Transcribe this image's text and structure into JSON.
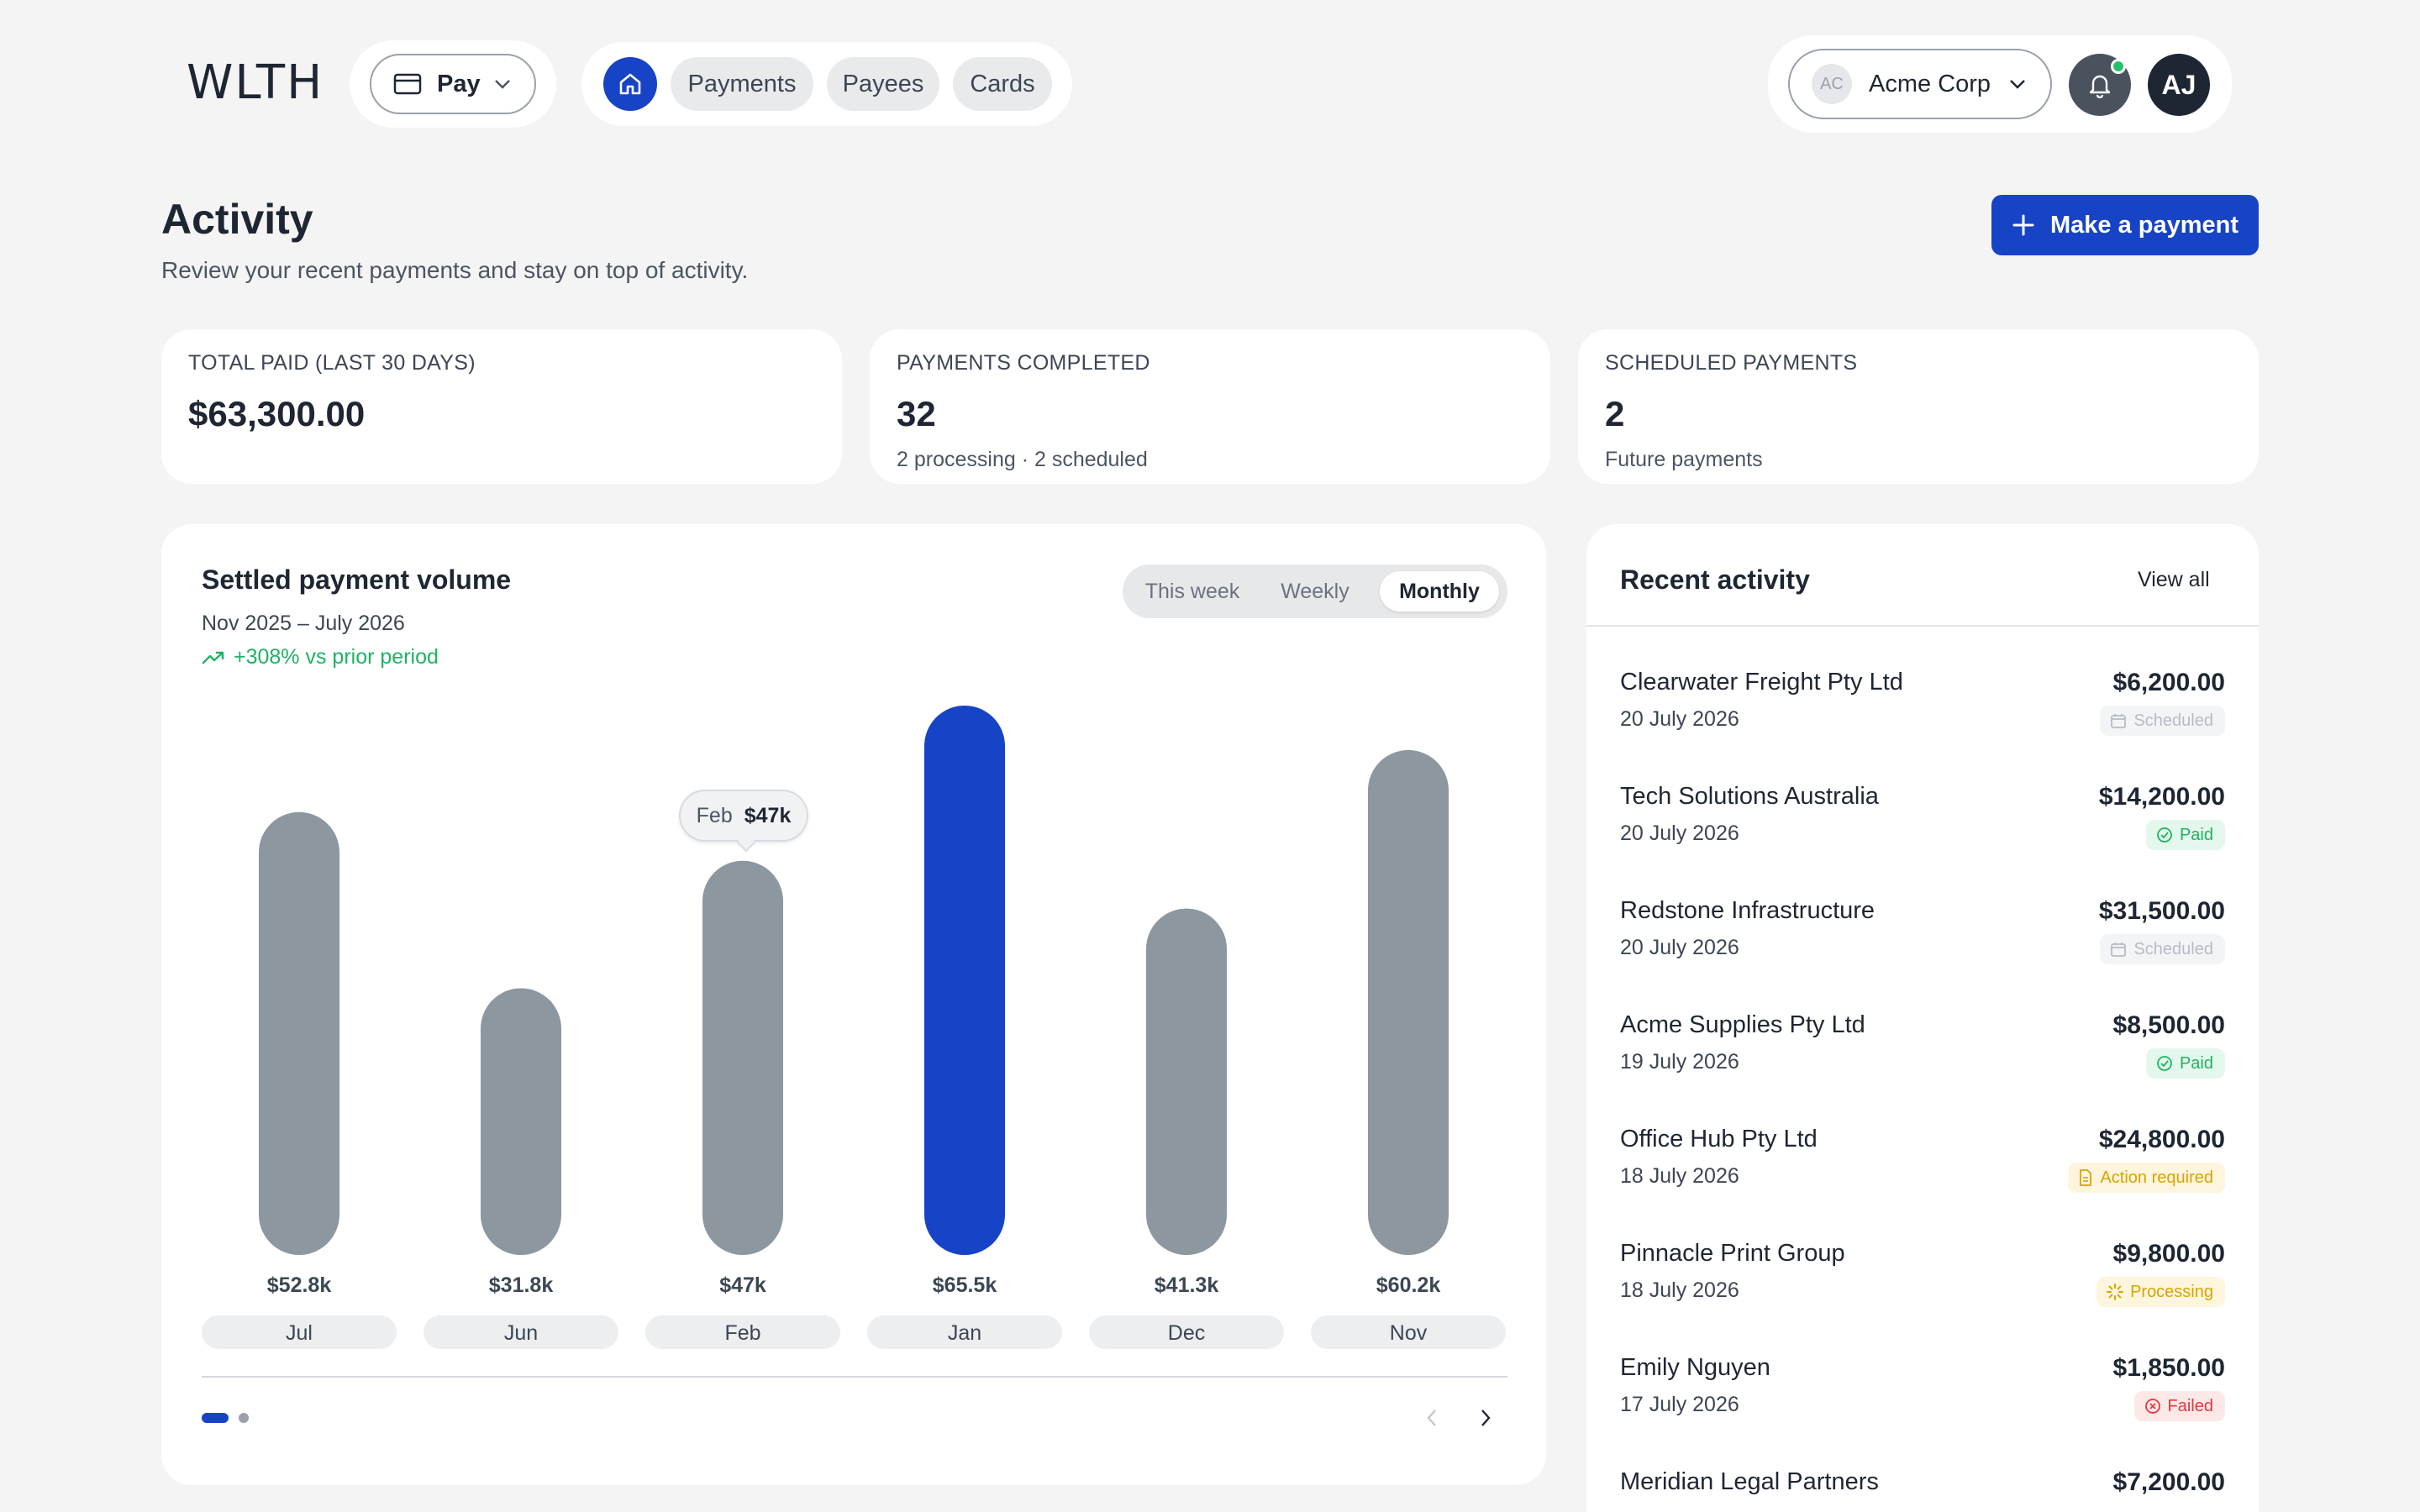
{
  "app": {
    "logo": "WLTH"
  },
  "topbar": {
    "pay_label": "Pay",
    "nav": [
      "Payments",
      "Payees",
      "Cards"
    ],
    "org_initials": "AC",
    "org_name": "Acme Corp",
    "user_initials": "AJ"
  },
  "page": {
    "title": "Activity",
    "subtitle": "Review your recent payments and stay on top of activity.",
    "make_payment": "Make a payment"
  },
  "stats": [
    {
      "label": "TOTAL PAID (LAST 30 DAYS)",
      "value": "$63,300.00",
      "note": ""
    },
    {
      "label": "PAYMENTS COMPLETED",
      "value": "32",
      "note": "2 processing · 2 scheduled"
    },
    {
      "label": "SCHEDULED PAYMENTS",
      "value": "2",
      "note": "Future payments"
    }
  ],
  "chart_card": {
    "title": "Settled payment volume",
    "range": "Nov 2025 – July 2026",
    "trend": "+308% vs prior period",
    "segments": [
      "This week",
      "Weekly",
      "Monthly"
    ],
    "active_segment": "Monthly",
    "tooltip_month": "Feb",
    "tooltip_value": "$47k"
  },
  "chart_data": {
    "type": "bar",
    "categories": [
      "Jul",
      "Jun",
      "Feb",
      "Jan",
      "Dec",
      "Nov"
    ],
    "values": [
      52.8,
      31.8,
      47,
      65.5,
      41.3,
      60.2
    ],
    "value_labels": [
      "$52.8k",
      "$31.8k",
      "$47k",
      "$65.5k",
      "$41.3k",
      "$60.2k"
    ],
    "highlight": "Jan",
    "colors": {
      "default": "#8c979f",
      "highlight": "#1743c6"
    }
  },
  "recent": {
    "title": "Recent activity",
    "view_all": "View all",
    "items": [
      {
        "name": "Clearwater Freight Pty Ltd",
        "date": "20 July 2026",
        "amount": "$6,200.00",
        "status": "Scheduled",
        "kind": "sched"
      },
      {
        "name": "Tech Solutions Australia",
        "date": "20 July 2026",
        "amount": "$14,200.00",
        "status": "Paid",
        "kind": "paid"
      },
      {
        "name": "Redstone Infrastructure",
        "date": "20 July 2026",
        "amount": "$31,500.00",
        "status": "Scheduled",
        "kind": "sched"
      },
      {
        "name": "Acme Supplies Pty Ltd",
        "date": "19 July 2026",
        "amount": "$8,500.00",
        "status": "Paid",
        "kind": "paid"
      },
      {
        "name": "Office Hub Pty Ltd",
        "date": "18 July 2026",
        "amount": "$24,800.00",
        "status": "Action required",
        "kind": "action"
      },
      {
        "name": "Pinnacle Print Group",
        "date": "18 July 2026",
        "amount": "$9,800.00",
        "status": "Processing",
        "kind": "proc"
      },
      {
        "name": "Emily Nguyen",
        "date": "17 July 2026",
        "amount": "$1,850.00",
        "status": "Failed",
        "kind": "fail"
      },
      {
        "name": "Meridian Legal Partners",
        "date": "",
        "amount": "$7,200.00",
        "status": "",
        "kind": ""
      }
    ]
  }
}
